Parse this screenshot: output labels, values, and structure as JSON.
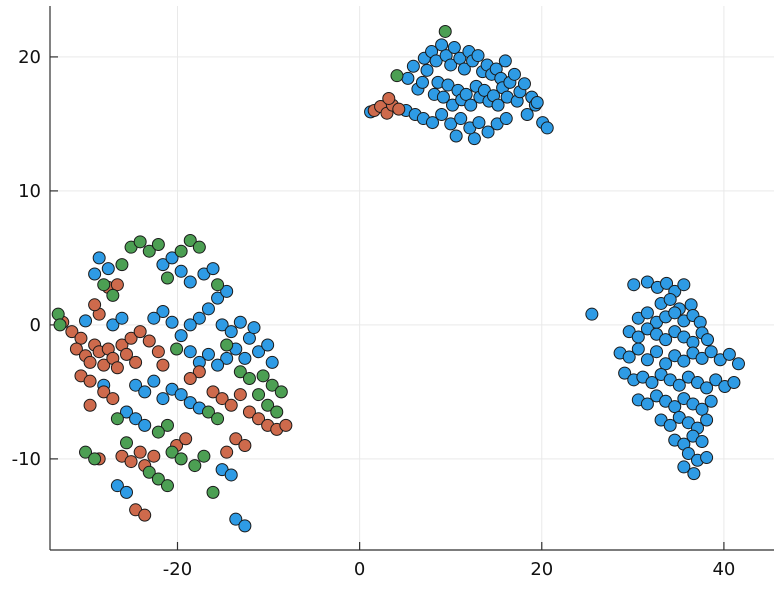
{
  "figure": {
    "background": "#ffffff"
  },
  "chart_data": {
    "type": "scatter",
    "title": "",
    "xlabel": "",
    "ylabel": "",
    "legend": "none",
    "grid": true,
    "xlim": [
      -34,
      45.5
    ],
    "ylim": [
      -16.8,
      23.8
    ],
    "x_ticks": [
      -20,
      0,
      20,
      40
    ],
    "x_tick_labels": [
      "-20",
      "0",
      "20",
      "40"
    ],
    "y_ticks": [
      -10,
      0,
      10,
      20
    ],
    "y_tick_labels": [
      "-10",
      "0",
      "10",
      "20"
    ],
    "grid_color": "#e9e9e9",
    "axis_color": "#2f2f2f",
    "tick_color": "#111111",
    "tick_font_size": 18,
    "background": "#ffffff",
    "marker": {
      "size": 6,
      "stroke": "#1a1a1a",
      "stroke_width": 1
    },
    "series": [
      {
        "name": "blue",
        "color": "#2E9BE5",
        "points": [
          [
            1.2,
            15.9
          ],
          [
            5.3,
            18.4
          ],
          [
            5.9,
            19.3
          ],
          [
            6.4,
            17.6
          ],
          [
            6.9,
            18.1
          ],
          [
            7.1,
            19.9
          ],
          [
            7.4,
            19.0
          ],
          [
            7.9,
            20.4
          ],
          [
            8.2,
            17.2
          ],
          [
            8.4,
            19.7
          ],
          [
            8.6,
            18.1
          ],
          [
            9.0,
            20.9
          ],
          [
            9.2,
            17.0
          ],
          [
            9.5,
            20.1
          ],
          [
            9.7,
            17.9
          ],
          [
            10.0,
            19.4
          ],
          [
            10.2,
            16.4
          ],
          [
            10.4,
            20.7
          ],
          [
            10.6,
            14.1
          ],
          [
            10.8,
            17.5
          ],
          [
            11.0,
            19.9
          ],
          [
            11.2,
            16.8
          ],
          [
            11.5,
            19.1
          ],
          [
            11.7,
            17.2
          ],
          [
            12.0,
            20.4
          ],
          [
            12.2,
            16.4
          ],
          [
            12.4,
            19.7
          ],
          [
            12.6,
            13.9
          ],
          [
            12.8,
            17.8
          ],
          [
            13.0,
            20.1
          ],
          [
            13.2,
            17.0
          ],
          [
            13.5,
            18.9
          ],
          [
            13.7,
            17.5
          ],
          [
            14.0,
            19.4
          ],
          [
            14.2,
            16.7
          ],
          [
            14.5,
            18.7
          ],
          [
            14.7,
            17.1
          ],
          [
            15.0,
            19.1
          ],
          [
            15.2,
            16.4
          ],
          [
            15.5,
            18.4
          ],
          [
            15.7,
            17.7
          ],
          [
            16.0,
            19.7
          ],
          [
            16.2,
            17.0
          ],
          [
            16.5,
            18.1
          ],
          [
            17.0,
            18.7
          ],
          [
            17.3,
            16.7
          ],
          [
            17.6,
            17.4
          ],
          [
            18.1,
            18.0
          ],
          [
            18.4,
            15.7
          ],
          [
            18.9,
            17.0
          ],
          [
            19.3,
            16.4
          ],
          [
            20.1,
            15.1
          ],
          [
            20.6,
            14.7
          ],
          [
            5.1,
            16.0
          ],
          [
            6.1,
            15.7
          ],
          [
            7.0,
            15.4
          ],
          [
            8.0,
            15.1
          ],
          [
            9.0,
            15.7
          ],
          [
            10.0,
            15.0
          ],
          [
            11.1,
            15.4
          ],
          [
            12.1,
            14.7
          ],
          [
            13.1,
            15.1
          ],
          [
            14.1,
            14.4
          ],
          [
            15.1,
            15.0
          ],
          [
            16.1,
            15.4
          ],
          [
            19.5,
            16.6
          ],
          [
            25.5,
            0.8
          ],
          [
            30.1,
            3.0
          ],
          [
            31.6,
            3.2
          ],
          [
            32.7,
            2.8
          ],
          [
            33.7,
            3.1
          ],
          [
            34.6,
            2.5
          ],
          [
            35.6,
            3.0
          ],
          [
            33.1,
            1.6
          ],
          [
            34.1,
            1.9
          ],
          [
            35.1,
            1.2
          ],
          [
            36.4,
            1.5
          ],
          [
            30.6,
            0.5
          ],
          [
            31.6,
            0.9
          ],
          [
            32.6,
            0.2
          ],
          [
            33.6,
            0.6
          ],
          [
            34.6,
            0.9
          ],
          [
            35.6,
            0.3
          ],
          [
            36.6,
            0.7
          ],
          [
            37.4,
            0.2
          ],
          [
            29.6,
            -0.5
          ],
          [
            30.6,
            -0.9
          ],
          [
            31.6,
            -0.3
          ],
          [
            32.6,
            -0.7
          ],
          [
            33.6,
            -1.1
          ],
          [
            34.6,
            -0.5
          ],
          [
            35.6,
            -0.9
          ],
          [
            36.6,
            -1.3
          ],
          [
            37.6,
            -0.6
          ],
          [
            38.2,
            -1.1
          ],
          [
            28.6,
            -2.1
          ],
          [
            29.6,
            -2.4
          ],
          [
            30.6,
            -1.8
          ],
          [
            31.6,
            -2.6
          ],
          [
            32.6,
            -2.0
          ],
          [
            33.6,
            -2.9
          ],
          [
            34.6,
            -2.3
          ],
          [
            35.6,
            -2.7
          ],
          [
            36.6,
            -2.1
          ],
          [
            37.6,
            -2.5
          ],
          [
            38.6,
            -2.0
          ],
          [
            39.6,
            -2.6
          ],
          [
            40.6,
            -2.2
          ],
          [
            41.6,
            -2.9
          ],
          [
            29.1,
            -3.6
          ],
          [
            30.1,
            -4.1
          ],
          [
            31.1,
            -3.9
          ],
          [
            32.1,
            -4.3
          ],
          [
            33.1,
            -3.7
          ],
          [
            34.1,
            -4.1
          ],
          [
            35.1,
            -4.5
          ],
          [
            36.1,
            -3.9
          ],
          [
            37.1,
            -4.3
          ],
          [
            38.1,
            -4.7
          ],
          [
            39.1,
            -4.1
          ],
          [
            40.1,
            -4.6
          ],
          [
            41.1,
            -4.3
          ],
          [
            30.6,
            -5.6
          ],
          [
            31.6,
            -5.9
          ],
          [
            32.6,
            -5.3
          ],
          [
            33.6,
            -5.7
          ],
          [
            34.6,
            -6.1
          ],
          [
            35.6,
            -5.5
          ],
          [
            36.6,
            -5.9
          ],
          [
            37.6,
            -6.3
          ],
          [
            38.6,
            -5.7
          ],
          [
            33.1,
            -7.1
          ],
          [
            34.1,
            -7.5
          ],
          [
            35.1,
            -6.9
          ],
          [
            36.1,
            -7.3
          ],
          [
            37.1,
            -7.7
          ],
          [
            38.1,
            -7.1
          ],
          [
            34.6,
            -8.6
          ],
          [
            35.6,
            -8.9
          ],
          [
            36.6,
            -8.3
          ],
          [
            37.6,
            -8.7
          ],
          [
            36.1,
            -9.6
          ],
          [
            37.1,
            -10.1
          ],
          [
            38.1,
            -9.9
          ],
          [
            35.6,
            -10.6
          ],
          [
            36.7,
            -11.1
          ],
          [
            -28.6,
            5.0
          ],
          [
            -27.6,
            4.2
          ],
          [
            -29.1,
            3.8
          ],
          [
            -21.6,
            4.5
          ],
          [
            -20.6,
            5.0
          ],
          [
            -19.6,
            4.0
          ],
          [
            -18.6,
            3.2
          ],
          [
            -17.1,
            3.8
          ],
          [
            -16.1,
            4.2
          ],
          [
            -15.6,
            2.0
          ],
          [
            -14.6,
            2.5
          ],
          [
            -16.6,
            1.2
          ],
          [
            -17.6,
            0.5
          ],
          [
            -18.6,
            0.0
          ],
          [
            -19.6,
            -0.8
          ],
          [
            -20.6,
            0.2
          ],
          [
            -21.6,
            1.0
          ],
          [
            -22.6,
            0.5
          ],
          [
            -15.1,
            0.0
          ],
          [
            -14.1,
            -0.5
          ],
          [
            -13.1,
            0.2
          ],
          [
            -12.1,
            -1.0
          ],
          [
            -11.6,
            -0.2
          ],
          [
            -13.6,
            -1.8
          ],
          [
            -14.6,
            -2.5
          ],
          [
            -15.6,
            -3.0
          ],
          [
            -16.6,
            -2.2
          ],
          [
            -17.6,
            -2.8
          ],
          [
            -18.6,
            -2.0
          ],
          [
            -12.6,
            -2.5
          ],
          [
            -11.1,
            -2.0
          ],
          [
            -10.1,
            -1.5
          ],
          [
            -27.1,
            0.0
          ],
          [
            -26.1,
            0.5
          ],
          [
            -30.1,
            0.3
          ],
          [
            -24.6,
            -4.5
          ],
          [
            -23.6,
            -5.0
          ],
          [
            -22.6,
            -4.2
          ],
          [
            -21.6,
            -5.5
          ],
          [
            -20.6,
            -4.8
          ],
          [
            -19.6,
            -5.2
          ],
          [
            -18.6,
            -5.8
          ],
          [
            -17.6,
            -6.2
          ],
          [
            -25.6,
            -6.5
          ],
          [
            -24.6,
            -7.0
          ],
          [
            -23.6,
            -7.5
          ],
          [
            -15.1,
            -10.8
          ],
          [
            -14.1,
            -11.2
          ],
          [
            -26.6,
            -12.0
          ],
          [
            -25.6,
            -12.5
          ],
          [
            -13.6,
            -14.5
          ],
          [
            -12.6,
            -15.0
          ],
          [
            -28.1,
            -4.5
          ],
          [
            -9.6,
            -2.8
          ]
        ]
      },
      {
        "name": "orange",
        "color": "#CE6A4C",
        "points": [
          [
            1.6,
            16.0
          ],
          [
            2.3,
            16.3
          ],
          [
            3.0,
            15.8
          ],
          [
            3.6,
            16.4
          ],
          [
            3.2,
            16.9
          ],
          [
            4.3,
            16.1
          ],
          [
            -32.6,
            0.2
          ],
          [
            -31.6,
            -0.5
          ],
          [
            -30.6,
            -1.0
          ],
          [
            -31.1,
            -1.8
          ],
          [
            -30.1,
            -2.3
          ],
          [
            -29.1,
            -1.5
          ],
          [
            -29.6,
            -2.8
          ],
          [
            -28.6,
            -2.0
          ],
          [
            -28.1,
            -3.0
          ],
          [
            -27.6,
            -1.8
          ],
          [
            -27.1,
            -2.5
          ],
          [
            -26.6,
            -3.2
          ],
          [
            -30.6,
            -3.8
          ],
          [
            -29.6,
            -4.2
          ],
          [
            -26.1,
            -1.5
          ],
          [
            -25.6,
            -2.2
          ],
          [
            -24.6,
            -2.8
          ],
          [
            -25.1,
            -1.0
          ],
          [
            -28.6,
            0.8
          ],
          [
            -29.1,
            1.5
          ],
          [
            -27.6,
            2.8
          ],
          [
            -26.6,
            3.0
          ],
          [
            -24.1,
            -0.5
          ],
          [
            -23.1,
            -1.2
          ],
          [
            -22.1,
            -2.0
          ],
          [
            -21.6,
            -3.0
          ],
          [
            -28.1,
            -5.0
          ],
          [
            -27.1,
            -5.5
          ],
          [
            -29.6,
            -6.0
          ],
          [
            -26.1,
            -9.8
          ],
          [
            -25.1,
            -10.2
          ],
          [
            -24.1,
            -9.5
          ],
          [
            -23.6,
            -10.5
          ],
          [
            -22.6,
            -9.8
          ],
          [
            -28.6,
            -10.0
          ],
          [
            -16.1,
            -5.0
          ],
          [
            -15.1,
            -5.5
          ],
          [
            -14.1,
            -6.0
          ],
          [
            -13.1,
            -5.2
          ],
          [
            -12.1,
            -6.5
          ],
          [
            -11.1,
            -7.0
          ],
          [
            -10.1,
            -7.5
          ],
          [
            -9.1,
            -7.8
          ],
          [
            -8.1,
            -7.5
          ],
          [
            -13.6,
            -8.5
          ],
          [
            -12.6,
            -9.0
          ],
          [
            -14.6,
            -9.5
          ],
          [
            -24.6,
            -13.8
          ],
          [
            -23.6,
            -14.2
          ],
          [
            -17.6,
            -3.5
          ],
          [
            -18.6,
            -4.0
          ],
          [
            -20.1,
            -9.0
          ],
          [
            -19.1,
            -8.5
          ]
        ]
      },
      {
        "name": "green",
        "color": "#4C9F53",
        "points": [
          [
            9.4,
            21.9
          ],
          [
            4.1,
            18.6
          ],
          [
            -33.1,
            0.8
          ],
          [
            -32.9,
            0.0
          ],
          [
            -25.1,
            5.8
          ],
          [
            -24.1,
            6.2
          ],
          [
            -23.1,
            5.5
          ],
          [
            -22.1,
            6.0
          ],
          [
            -18.6,
            6.3
          ],
          [
            -17.6,
            5.8
          ],
          [
            -19.6,
            5.5
          ],
          [
            -28.1,
            3.0
          ],
          [
            -27.1,
            2.2
          ],
          [
            -21.1,
            3.5
          ],
          [
            -15.6,
            3.0
          ],
          [
            -14.6,
            -1.5
          ],
          [
            -13.1,
            -3.5
          ],
          [
            -12.1,
            -4.0
          ],
          [
            -10.6,
            -3.8
          ],
          [
            -9.6,
            -4.5
          ],
          [
            -8.6,
            -5.0
          ],
          [
            -11.1,
            -5.2
          ],
          [
            -16.6,
            -6.5
          ],
          [
            -15.6,
            -7.0
          ],
          [
            -10.1,
            -6.0
          ],
          [
            -9.1,
            -6.5
          ],
          [
            -21.1,
            -7.5
          ],
          [
            -22.1,
            -8.0
          ],
          [
            -20.6,
            -9.5
          ],
          [
            -19.6,
            -10.0
          ],
          [
            -23.1,
            -11.0
          ],
          [
            -22.1,
            -11.5
          ],
          [
            -21.1,
            -12.0
          ],
          [
            -25.6,
            -8.8
          ],
          [
            -26.6,
            -7.0
          ],
          [
            -18.1,
            -10.5
          ],
          [
            -17.1,
            -9.8
          ],
          [
            -26.1,
            4.5
          ],
          [
            -30.1,
            -9.5
          ],
          [
            -29.1,
            -10.0
          ],
          [
            -16.1,
            -12.5
          ],
          [
            -20.1,
            -1.8
          ]
        ]
      }
    ]
  }
}
